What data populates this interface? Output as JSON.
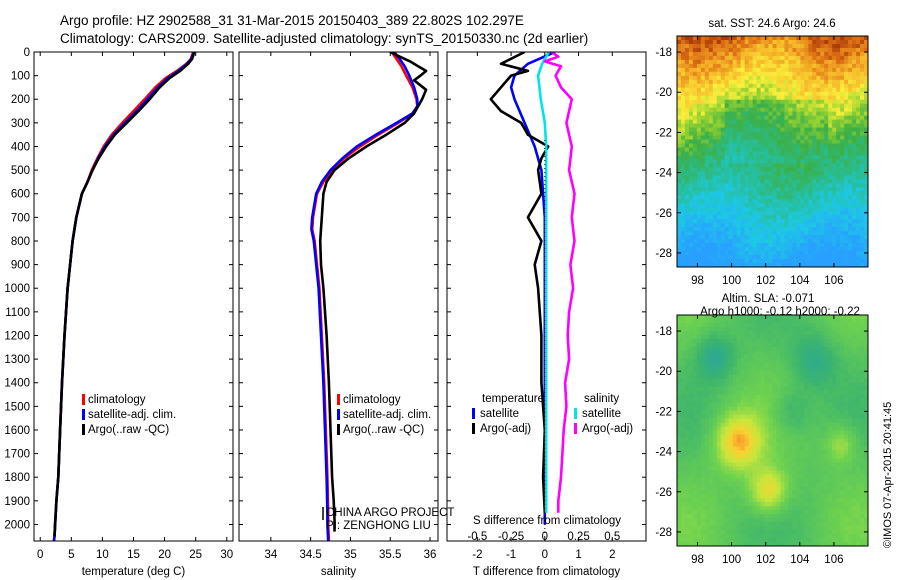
{
  "header": {
    "line1": "Argo profile: HZ 2902588_31 31-Mar-2015 20150403_389 22.802S 102.297E",
    "line2": "Climatology: CARS2009. Satellite-adjusted climatology: synTS_20150330.nc (2d earlier)"
  },
  "colors": {
    "climatology": "#ff0000",
    "satellite": "#0000ff",
    "argo": "#000000",
    "sat_salinity": "#00e5e5",
    "argo_salinity": "#ff00ff"
  },
  "depth_axis": {
    "ticks": [
      0,
      100,
      200,
      300,
      400,
      500,
      600,
      700,
      800,
      900,
      1000,
      1100,
      1200,
      1300,
      1400,
      1500,
      1600,
      1700,
      1800,
      1900,
      2000
    ],
    "range": [
      0,
      2070
    ]
  },
  "legend_profiles": [
    "climatology",
    "satellite-adj. clim.",
    "Argo(..raw -QC)"
  ],
  "legend_diff": {
    "temp_title": "temperature",
    "sal_title": "salinity",
    "items": [
      "satellite",
      "Argo(-adj)",
      "satellite",
      "Argo(-adj)"
    ]
  },
  "credits": {
    "line1": "CHINA ARGO PROJECT",
    "line2": "PI: ZENGHONG LIU"
  },
  "footer_stamp": "©IMOS 07-Apr-2015 20:41:45",
  "chart_data": [
    {
      "type": "line",
      "id": "temperature",
      "xlabel": "temperature (deg C)",
      "ylabel": "",
      "xlim": [
        -1,
        31
      ],
      "xticks": [
        0,
        5,
        10,
        15,
        20,
        25,
        30
      ],
      "ylim": [
        0,
        2070
      ],
      "series": [
        {
          "name": "climatology",
          "color": "#ff0000",
          "x": [
            24.6,
            24.2,
            23.5,
            22.0,
            20.2,
            18.5,
            16.8,
            15.0,
            13.2,
            11.5,
            10.2,
            9.2,
            8.3,
            7.6,
            6.7,
            5.8,
            5.2,
            4.8,
            4.4,
            3.9,
            3.5,
            3.2,
            2.9,
            2.6,
            2.4,
            2.3,
            2.2
          ],
          "y": [
            0,
            30,
            50,
            80,
            110,
            150,
            200,
            250,
            300,
            350,
            400,
            450,
            500,
            550,
            600,
            700,
            800,
            900,
            1000,
            1200,
            1400,
            1600,
            1800,
            1900,
            2000,
            2050,
            2070
          ]
        },
        {
          "name": "satellite-adj. clim.",
          "color": "#0000ff",
          "x": [
            24.7,
            24.3,
            23.6,
            22.2,
            20.5,
            18.9,
            17.2,
            15.5,
            13.6,
            11.8,
            10.4,
            9.3,
            8.4,
            7.6,
            6.7,
            5.8,
            5.2,
            4.8,
            4.4,
            3.9,
            3.5,
            3.2,
            2.9,
            2.6,
            2.4,
            2.3,
            2.2
          ],
          "y": [
            0,
            30,
            50,
            80,
            110,
            150,
            200,
            250,
            300,
            350,
            400,
            450,
            500,
            550,
            600,
            700,
            800,
            900,
            1000,
            1200,
            1400,
            1600,
            1800,
            1900,
            2000,
            2050,
            2070
          ]
        },
        {
          "name": "Argo(..raw -QC)",
          "color": "#000000",
          "x": [
            24.8,
            24.4,
            23.8,
            22.5,
            20.8,
            19.2,
            17.6,
            15.8,
            13.9,
            12.0,
            10.6,
            9.4,
            8.4,
            7.6,
            6.7,
            5.8,
            5.2,
            4.8,
            4.4,
            3.9,
            3.5,
            3.2,
            2.9,
            2.6,
            2.4,
            2.3
          ],
          "y": [
            0,
            30,
            50,
            80,
            110,
            150,
            200,
            250,
            300,
            350,
            400,
            450,
            500,
            550,
            600,
            700,
            800,
            900,
            1000,
            1200,
            1400,
            1600,
            1800,
            1900,
            2000,
            2050
          ]
        }
      ]
    },
    {
      "type": "line",
      "id": "salinity",
      "xlabel": "salinity",
      "ylabel": "",
      "xlim": [
        33.6,
        36.1
      ],
      "xticks": [
        34,
        34.5,
        35,
        35.5,
        36
      ],
      "ylim": [
        0,
        2070
      ],
      "series": [
        {
          "name": "climatology",
          "color": "#ff0000",
          "x": [
            35.52,
            35.58,
            35.64,
            35.7,
            35.78,
            35.83,
            35.84,
            35.78,
            35.6,
            35.35,
            35.12,
            34.92,
            34.77,
            34.66,
            34.58,
            34.53,
            34.52,
            34.55,
            34.58,
            34.61,
            34.64,
            34.67,
            34.69,
            34.71,
            34.72,
            34.72,
            34.73
          ],
          "y": [
            0,
            30,
            60,
            100,
            150,
            200,
            230,
            260,
            300,
            350,
            400,
            450,
            500,
            550,
            600,
            700,
            750,
            800,
            900,
            1000,
            1200,
            1400,
            1600,
            1800,
            1950,
            2000,
            2070
          ]
        },
        {
          "name": "satellite-adj. clim.",
          "color": "#0000ff",
          "x": [
            35.55,
            35.62,
            35.68,
            35.74,
            35.8,
            35.84,
            35.84,
            35.78,
            35.58,
            35.32,
            35.08,
            34.9,
            34.75,
            34.64,
            34.57,
            34.52,
            34.51,
            34.54,
            34.57,
            34.6,
            34.63,
            34.66,
            34.68,
            34.7,
            34.71,
            34.71,
            34.72
          ],
          "y": [
            0,
            30,
            60,
            100,
            150,
            200,
            230,
            260,
            300,
            350,
            400,
            450,
            500,
            550,
            600,
            700,
            750,
            800,
            900,
            1000,
            1200,
            1400,
            1600,
            1800,
            1950,
            2000,
            2070
          ]
        },
        {
          "name": "Argo(..raw -QC)",
          "color": "#000000",
          "x": [
            35.5,
            35.62,
            35.75,
            35.85,
            35.95,
            35.88,
            35.8,
            35.95,
            35.9,
            35.85,
            35.8,
            35.68,
            35.45,
            35.2,
            34.98,
            34.8,
            34.7,
            34.66,
            34.65,
            34.64,
            34.62,
            34.63,
            34.66,
            34.7,
            34.73,
            34.75,
            34.77,
            34.79,
            34.8,
            34.8
          ],
          "y": [
            0,
            20,
            40,
            60,
            80,
            100,
            120,
            160,
            200,
            230,
            260,
            300,
            350,
            400,
            450,
            500,
            550,
            600,
            650,
            700,
            800,
            900,
            1000,
            1200,
            1400,
            1600,
            1800,
            1900,
            1980,
            2030
          ]
        }
      ]
    },
    {
      "type": "line",
      "id": "difference",
      "xlabel": "T difference from climatology",
      "xlabel_top": "S difference from climatology",
      "xlim": [
        -2.9,
        3.0
      ],
      "xticks": [
        -2,
        -1,
        0,
        1,
        2
      ],
      "top_xticks": [
        -0.5,
        -0.25,
        0,
        0.25,
        0.5
      ],
      "top_xlim": [
        -0.725,
        0.75
      ],
      "ylim": [
        0,
        2070
      ],
      "series": [
        {
          "name": "satellite",
          "group": "temperature",
          "color": "#0000ff",
          "x": [
            0.3,
            -0.5,
            -0.9,
            -1.0,
            -0.9,
            -0.6,
            -0.3,
            -0.1,
            0,
            0,
            0,
            0,
            0
          ],
          "y": [
            0,
            50,
            100,
            150,
            200,
            300,
            400,
            500,
            700,
            1000,
            1400,
            1800,
            2000
          ]
        },
        {
          "name": "Argo(-adj)",
          "group": "temperature",
          "color": "#000000",
          "x": [
            -0.6,
            -1.3,
            -0.5,
            -1.0,
            -1.6,
            -1.3,
            -0.7,
            -0.5,
            0.1,
            -0.1,
            -0.2,
            -0.1,
            -0.5,
            -0.3,
            -0.1,
            -0.3,
            -0.2,
            -0.1,
            -0.1,
            0,
            -0.05,
            0
          ],
          "y": [
            0,
            50,
            80,
            100,
            200,
            250,
            300,
            350,
            400,
            450,
            500,
            600,
            700,
            750,
            800,
            900,
            1000,
            1200,
            1400,
            1600,
            1800,
            1950
          ]
        },
        {
          "name": "satellite",
          "group": "salinity",
          "color": "#00e5e5",
          "x": [
            0.03,
            -0.02,
            -0.05,
            -0.03,
            0,
            0.01,
            0.01,
            0.01,
            0.01,
            0.01,
            0.01
          ],
          "y": [
            0,
            50,
            100,
            200,
            300,
            400,
            600,
            900,
            1200,
            1600,
            1950
          ]
        },
        {
          "name": "Argo(-adj)",
          "group": "salinity",
          "color": "#ff00ff",
          "x": [
            0.05,
            0.1,
            0.0,
            0.12,
            0.08,
            0.12,
            0.2,
            0.16,
            0.2,
            0.18,
            0.22,
            0.2,
            0.22,
            0.19,
            0.21,
            0.18,
            0.17,
            0.18,
            0.15,
            0.16,
            0.14,
            0.13,
            0.12,
            0.11,
            0.1,
            0.1
          ],
          "y": [
            0,
            20,
            40,
            60,
            100,
            150,
            200,
            300,
            400,
            500,
            600,
            700,
            800,
            900,
            1000,
            1100,
            1200,
            1300,
            1400,
            1500,
            1600,
            1700,
            1800,
            1850,
            1900,
            1950
          ]
        }
      ]
    },
    {
      "type": "heatmap",
      "id": "sst_map",
      "title": "sat. SST: 24.6 Argo: 24.6",
      "xticks": [
        98,
        100,
        102,
        104,
        106
      ],
      "yticks": [
        -18,
        -20,
        -22,
        -24,
        -26,
        -28
      ],
      "xlim": [
        96.8,
        108.0
      ],
      "ylim": [
        -28.7,
        -17.2
      ]
    },
    {
      "type": "heatmap",
      "id": "sla_map",
      "title": "Altim. SLA: -0.071",
      "subtitle": "Argo h1000: -0.12 h2000: -0.22",
      "xticks": [
        98,
        100,
        102,
        104,
        106
      ],
      "yticks": [
        -18,
        -20,
        -22,
        -24,
        -26,
        -28
      ],
      "xlim": [
        96.8,
        108.0
      ],
      "ylim": [
        -28.7,
        -17.2
      ]
    }
  ]
}
